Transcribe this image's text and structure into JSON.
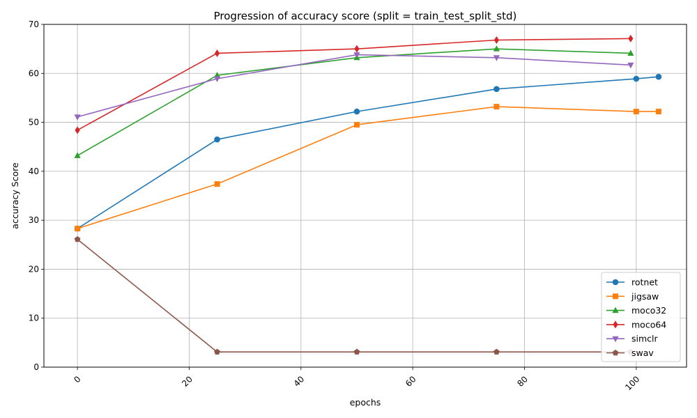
{
  "chart_data": {
    "type": "line",
    "title": "Progression of accuracy score (split = train_test_split_std)",
    "xlabel": "epochs",
    "ylabel": "accuracy Score",
    "xlim": [
      -6,
      109
    ],
    "ylim": [
      0,
      70
    ],
    "xticks": [
      0,
      20,
      40,
      60,
      80,
      100
    ],
    "yticks": [
      0,
      10,
      20,
      30,
      40,
      50,
      60,
      70
    ],
    "grid": true,
    "legend_position": "lower right",
    "series": [
      {
        "name": "rotnet",
        "color": "#1f77b4",
        "marker": "circle",
        "x": [
          0,
          25,
          50,
          75,
          100,
          104
        ],
        "y": [
          28.3,
          46.5,
          52.2,
          56.8,
          58.9,
          59.3
        ]
      },
      {
        "name": "jigsaw",
        "color": "#ff7f0e",
        "marker": "square",
        "x": [
          0,
          25,
          50,
          75,
          100,
          104
        ],
        "y": [
          28.3,
          37.4,
          49.5,
          53.2,
          52.2,
          52.2
        ]
      },
      {
        "name": "moco32",
        "color": "#2ca02c",
        "marker": "triangle-up",
        "x": [
          0,
          25,
          50,
          75,
          99
        ],
        "y": [
          43.2,
          59.6,
          63.2,
          65.0,
          64.1
        ]
      },
      {
        "name": "moco64",
        "color": "#d62728",
        "marker": "diamond",
        "x": [
          0,
          25,
          50,
          75,
          99
        ],
        "y": [
          48.4,
          64.1,
          65.0,
          66.8,
          67.1
        ]
      },
      {
        "name": "simclr",
        "color": "#9467bd",
        "marker": "triangle-down",
        "x": [
          0,
          25,
          50,
          75,
          99
        ],
        "y": [
          51.1,
          58.9,
          63.8,
          63.2,
          61.7
        ]
      },
      {
        "name": "swav",
        "color": "#8c564b",
        "marker": "pentagon",
        "x": [
          0,
          25,
          50,
          75,
          99
        ],
        "y": [
          26.1,
          3.1,
          3.1,
          3.1,
          3.1
        ]
      }
    ]
  }
}
